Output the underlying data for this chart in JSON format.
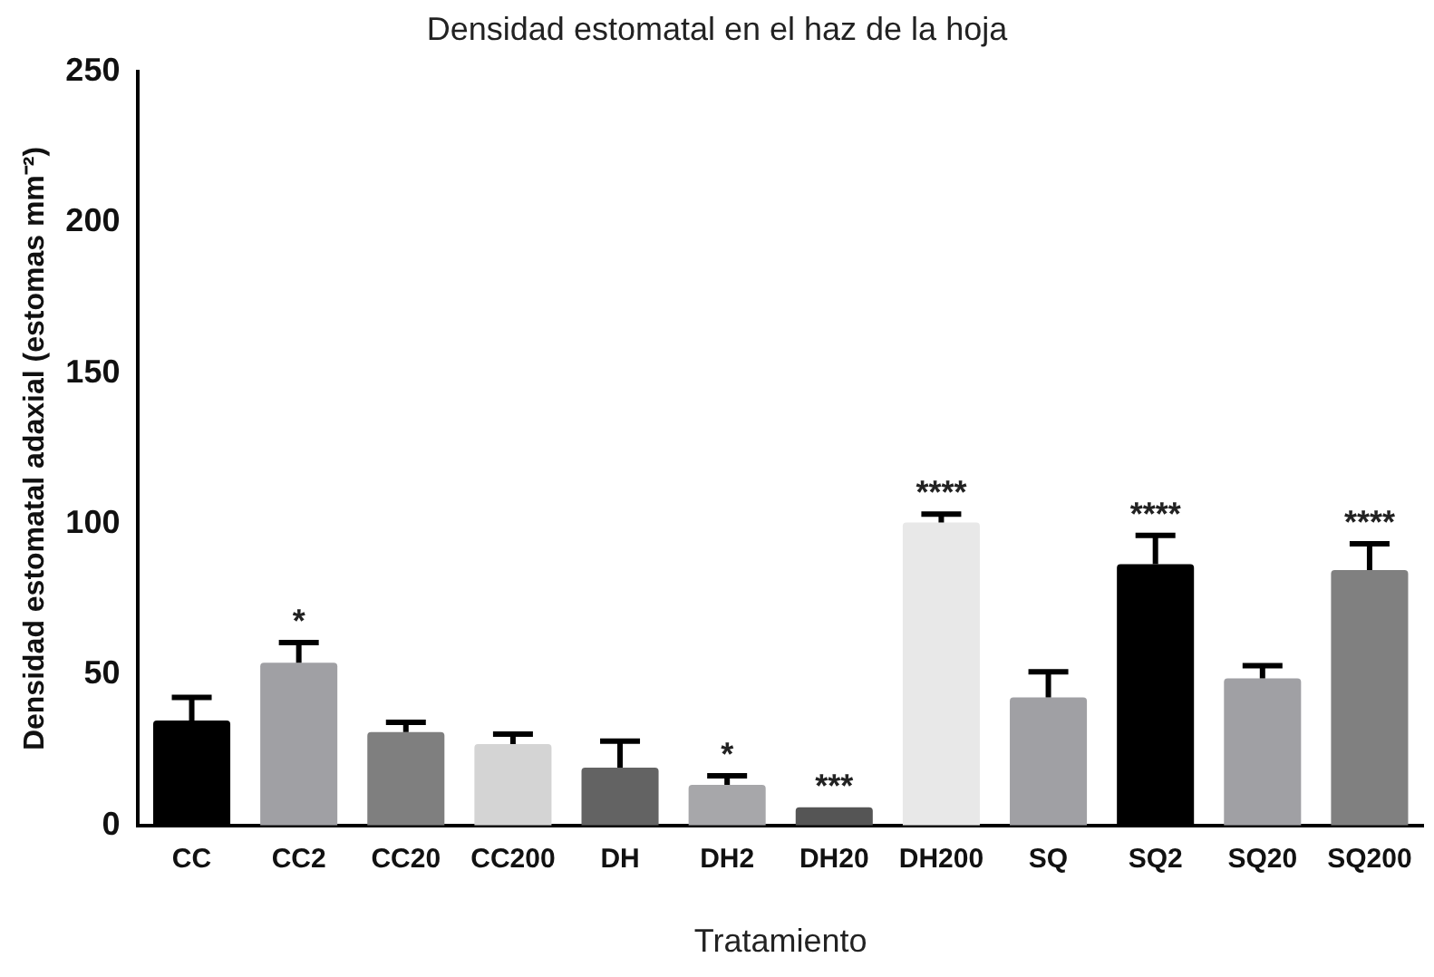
{
  "chart_data": {
    "type": "bar",
    "title": "Densidad estomatal en el haz de la hoja",
    "xlabel": "Tratamiento",
    "ylabel": "Densidad estomatal adaxial (estomas mm⁻²)",
    "categories": [
      "CC",
      "CC2",
      "CC20",
      "CC200",
      "DH",
      "DH2",
      "DH20",
      "DH200",
      "SQ",
      "SQ2",
      "SQ20",
      "SQ200"
    ],
    "values": [
      34.8,
      54,
      31,
      27,
      19.2,
      13.5,
      6,
      100.5,
      42.5,
      86.7,
      48.8,
      84.7
    ],
    "colors": [
      "#000000",
      "#a0a0a4",
      "#7f7f7f",
      "#d4d4d4",
      "#636363",
      "#a7a7aa",
      "#555555",
      "#e8e8e8",
      "#a0a0a4",
      "#000000",
      "#a0a0a4",
      "#808080"
    ],
    "errors": [
      [
        34.8,
        42.5
      ],
      [
        54,
        60.7
      ],
      [
        31,
        34.2
      ],
      [
        27,
        30.3
      ],
      [
        19.2,
        28
      ],
      [
        13.5,
        16.5
      ],
      null,
      [
        100.5,
        103.3
      ],
      [
        42.5,
        51
      ],
      [
        86.7,
        96.2
      ],
      [
        48.8,
        53
      ],
      [
        84.7,
        93.4
      ]
    ],
    "ylim": [
      0,
      250
    ],
    "yticks": [
      0,
      50,
      100,
      150,
      200,
      250
    ],
    "grid": false,
    "legend": false,
    "annotations": [
      {
        "text": "*",
        "x": "CC2",
        "y": 60.7
      },
      {
        "text": "*",
        "x": "DH2",
        "y": 16.5
      },
      {
        "text": "***",
        "x": "DH20",
        "y": 6
      },
      {
        "text": "****",
        "x": "DH200",
        "y": 103.3
      },
      {
        "text": "****",
        "x": "SQ2",
        "y": 96.2
      },
      {
        "text": "****",
        "x": "SQ200",
        "y": 93.4
      }
    ]
  }
}
